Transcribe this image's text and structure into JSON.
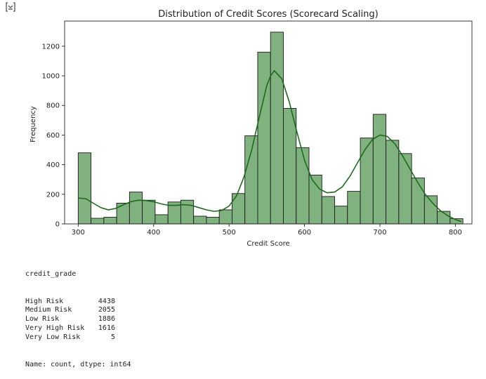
{
  "output": {
    "icon": "output-toggle-icon"
  },
  "chart_data": {
    "type": "bar",
    "title": "Distribution of Credit Scores (Scorecard Scaling)",
    "xlabel": "Credit Score",
    "ylabel": "Frequency",
    "xlim": [
      282,
      822
    ],
    "ylim": [
      0,
      1370
    ],
    "xticks": [
      300,
      400,
      500,
      600,
      700,
      800
    ],
    "yticks": [
      0,
      200,
      400,
      600,
      800,
      1000,
      1200
    ],
    "grid": false,
    "bar_color": "#7fb27f",
    "bar_edge_color": "#1a1a1a",
    "kde_color": "#1c6b1c",
    "bins": [
      {
        "x0": 300,
        "x1": 317,
        "count": 480
      },
      {
        "x0": 317,
        "x1": 334,
        "count": 38
      },
      {
        "x0": 334,
        "x1": 351,
        "count": 45
      },
      {
        "x0": 351,
        "x1": 368,
        "count": 140
      },
      {
        "x0": 368,
        "x1": 385,
        "count": 215
      },
      {
        "x0": 385,
        "x1": 402,
        "count": 160
      },
      {
        "x0": 402,
        "x1": 419,
        "count": 62
      },
      {
        "x0": 419,
        "x1": 436,
        "count": 148
      },
      {
        "x0": 436,
        "x1": 453,
        "count": 160
      },
      {
        "x0": 453,
        "x1": 470,
        "count": 52
      },
      {
        "x0": 470,
        "x1": 487,
        "count": 45
      },
      {
        "x0": 487,
        "x1": 504,
        "count": 95
      },
      {
        "x0": 504,
        "x1": 521,
        "count": 205
      },
      {
        "x0": 521,
        "x1": 538,
        "count": 595
      },
      {
        "x0": 538,
        "x1": 555,
        "count": 1160
      },
      {
        "x0": 555,
        "x1": 572,
        "count": 1295
      },
      {
        "x0": 572,
        "x1": 589,
        "count": 780
      },
      {
        "x0": 589,
        "x1": 606,
        "count": 515
      },
      {
        "x0": 606,
        "x1": 623,
        "count": 330
      },
      {
        "x0": 623,
        "x1": 640,
        "count": 185
      },
      {
        "x0": 640,
        "x1": 657,
        "count": 120
      },
      {
        "x0": 657,
        "x1": 674,
        "count": 220
      },
      {
        "x0": 674,
        "x1": 691,
        "count": 580
      },
      {
        "x0": 691,
        "x1": 708,
        "count": 740
      },
      {
        "x0": 708,
        "x1": 725,
        "count": 565
      },
      {
        "x0": 725,
        "x1": 742,
        "count": 475
      },
      {
        "x0": 742,
        "x1": 759,
        "count": 310
      },
      {
        "x0": 759,
        "x1": 776,
        "count": 190
      },
      {
        "x0": 776,
        "x1": 793,
        "count": 85
      },
      {
        "x0": 793,
        "x1": 810,
        "count": 35
      }
    ],
    "kde": {
      "x": [
        300,
        310,
        320,
        330,
        340,
        350,
        360,
        370,
        380,
        390,
        400,
        410,
        420,
        430,
        440,
        450,
        460,
        470,
        480,
        490,
        500,
        510,
        520,
        530,
        540,
        550,
        555,
        560,
        570,
        580,
        590,
        600,
        610,
        620,
        630,
        640,
        650,
        660,
        670,
        680,
        690,
        700,
        710,
        720,
        730,
        740,
        750,
        760,
        770,
        780,
        790,
        800,
        808
      ],
      "y": [
        175,
        170,
        140,
        110,
        95,
        105,
        130,
        150,
        160,
        158,
        150,
        135,
        125,
        125,
        130,
        125,
        110,
        95,
        85,
        90,
        120,
        190,
        320,
        500,
        720,
        935,
        1000,
        1035,
        980,
        820,
        620,
        430,
        300,
        235,
        210,
        215,
        250,
        320,
        410,
        500,
        570,
        600,
        590,
        540,
        460,
        370,
        280,
        200,
        140,
        90,
        55,
        30,
        15
      ]
    }
  },
  "text_output": {
    "header": "credit_grade",
    "rows": [
      {
        "label": "High Risk",
        "value": "4438"
      },
      {
        "label": "Medium Risk",
        "value": "2055"
      },
      {
        "label": "Low Risk",
        "value": "1886"
      },
      {
        "label": "Very High Risk",
        "value": "1616"
      },
      {
        "label": "Very Low Risk",
        "value": "5"
      }
    ],
    "footer": "Name: count, dtype: int64"
  }
}
